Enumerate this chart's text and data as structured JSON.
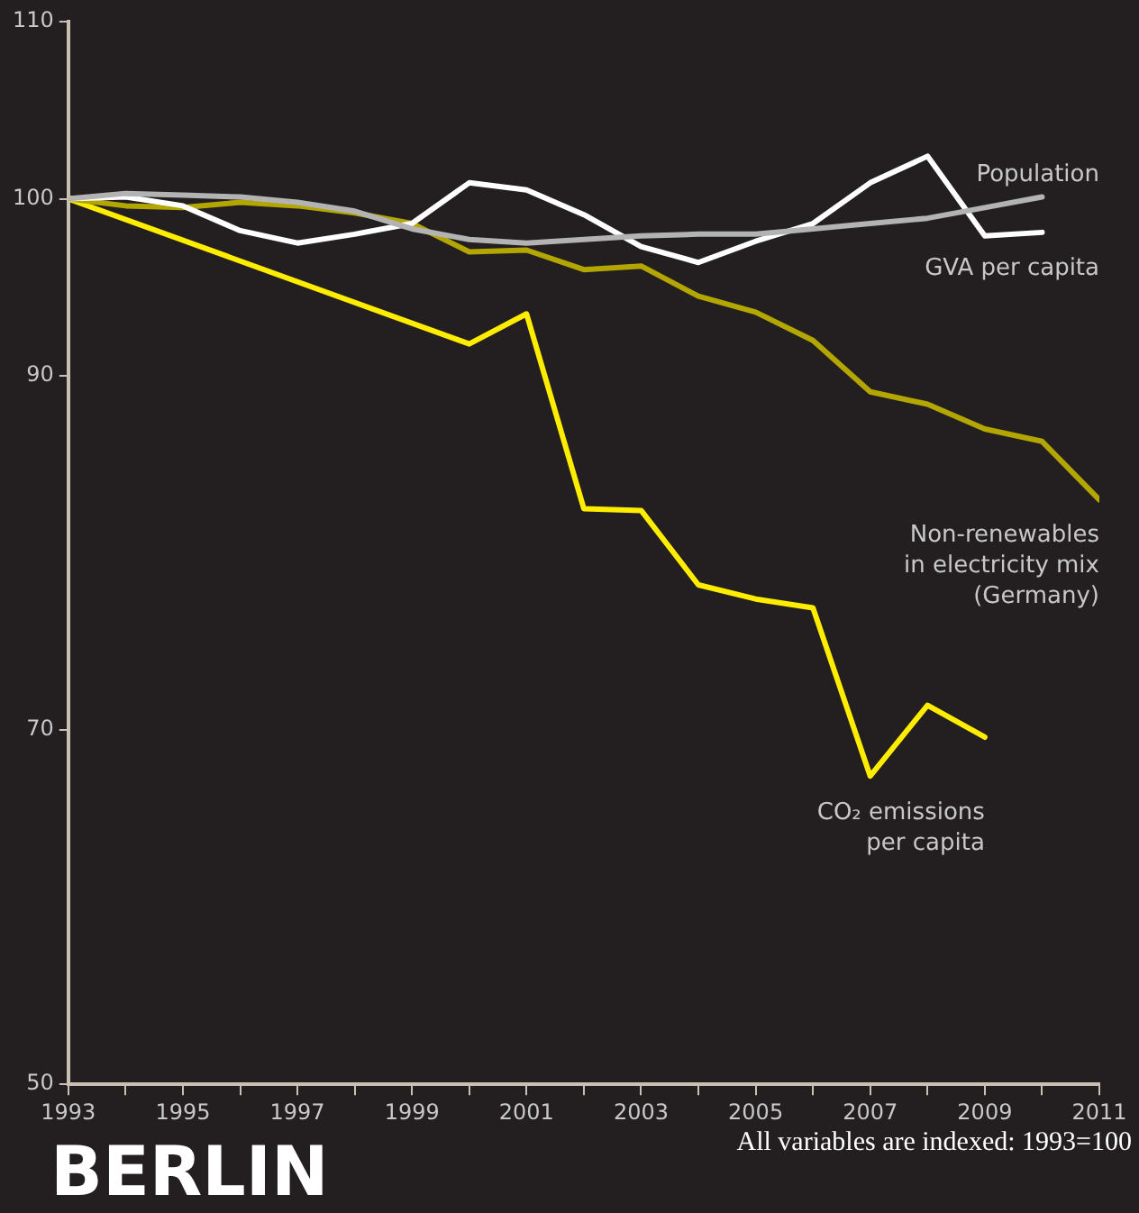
{
  "chart_data": {
    "type": "line",
    "title": "BERLIN",
    "annotations": [
      "All variables are indexed: 1993=100"
    ],
    "x": [
      1993,
      1994,
      1995,
      1996,
      1997,
      1998,
      1999,
      2000,
      2001,
      2002,
      2003,
      2004,
      2005,
      2006,
      2007,
      2008,
      2009,
      2010,
      2011
    ],
    "series": [
      {
        "name": "Population",
        "color": "#b3b3b3",
        "x": [
          1993,
          1994,
          1995,
          1996,
          1997,
          1998,
          1999,
          2000,
          2001,
          2002,
          2003,
          2004,
          2005,
          2006,
          2007,
          2008,
          2009,
          2010
        ],
        "values": [
          100,
          100.3,
          100.2,
          100.1,
          99.8,
          99.3,
          98.3,
          97.7,
          97.5,
          97.7,
          97.9,
          98.0,
          98.0,
          98.3,
          98.6,
          98.9,
          99.5,
          100.1
        ]
      },
      {
        "name": "GVA per capita",
        "color": "#ffffff",
        "x": [
          1993,
          1994,
          1995,
          1996,
          1997,
          1998,
          1999,
          2000,
          2001,
          2002,
          2003,
          2004,
          2005,
          2006,
          2007,
          2008,
          2009,
          2010
        ],
        "values": [
          100,
          100.1,
          99.6,
          98.2,
          97.5,
          98.0,
          98.6,
          100.9,
          100.5,
          99.1,
          97.3,
          96.4,
          97.6,
          98.6,
          100.9,
          102.4,
          97.9,
          98.1
        ]
      },
      {
        "name": "Non-renewables\nin electricity mix\n(Germany)",
        "color": "#b3a600",
        "values": [
          100,
          99.6,
          99.5,
          99.8,
          99.6,
          99.2,
          98.6,
          97.0,
          97.1,
          96.0,
          96.2,
          94.5,
          93.6,
          92.0,
          89.1,
          88.4,
          87.0,
          86.3,
          83.0
        ]
      },
      {
        "name": "CO₂ emissions\nper capita",
        "color": "#ffed00",
        "x": [
          1993,
          2000,
          2001,
          2002,
          2003,
          2004,
          2005,
          2006,
          2007,
          2008,
          2009
        ],
        "values": [
          100,
          91.8,
          93.5,
          82.5,
          82.4,
          78.2,
          77.4,
          76.9,
          67.4,
          71.4,
          69.6
        ]
      }
    ],
    "xlim": [
      1993,
      2011
    ],
    "xticks": [
      1993,
      {
        "value": 1994,
        "label": null
      },
      1995,
      {
        "value": 1996,
        "label": null
      },
      1997,
      {
        "value": 1998,
        "label": null
      },
      1999,
      {
        "value": 2000,
        "label": null
      },
      2001,
      {
        "value": 2002,
        "label": null
      },
      2003,
      {
        "value": 2004,
        "label": null
      },
      2005,
      {
        "value": 2006,
        "label": null
      },
      2007,
      {
        "value": 2008,
        "label": null
      },
      2009,
      {
        "value": 2010,
        "label": null
      },
      2011
    ],
    "ylim": [
      50,
      110
    ],
    "yticks": [
      50,
      70,
      90,
      100,
      110
    ],
    "grid": false,
    "legend": false,
    "marker": "none",
    "line_style": "solid"
  }
}
